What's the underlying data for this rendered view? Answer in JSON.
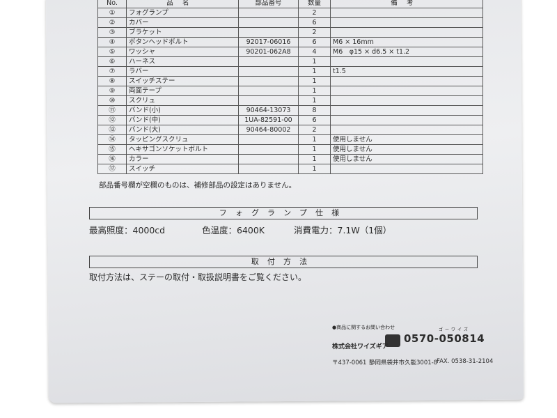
{
  "table": {
    "header": [
      "No.",
      "品名",
      "部品番号",
      "数量",
      "備考"
    ],
    "rows": [
      {
        "no": "①",
        "name": "フォグランプ",
        "qty": "2"
      },
      {
        "no": "②",
        "name": "カバー",
        "qty": "6"
      },
      {
        "no": "③",
        "name": "ブラケット",
        "qty": "2"
      },
      {
        "no": "④",
        "name": "ボタンヘッドボルト",
        "part": "92017-06016",
        "qty": "6",
        "note": "M6 × 16mm"
      },
      {
        "no": "⑤",
        "name": "ワッシャ",
        "part": "90201-062A8",
        "qty": "4",
        "note": "M6　φ15 × d6.5 × t1.2"
      },
      {
        "no": "⑥",
        "name": "ハーネス",
        "qty": "1"
      },
      {
        "no": "⑦",
        "name": "ラバー",
        "qty": "1",
        "note": "t1.5"
      },
      {
        "no": "⑧",
        "name": "スイッチステー",
        "qty": "1"
      },
      {
        "no": "⑨",
        "name": "両面テープ",
        "qty": "1"
      },
      {
        "no": "⑩",
        "name": "スクリュ",
        "qty": "1"
      },
      {
        "no": "⑪",
        "name": "バンド(小)",
        "part": "90464-13073",
        "qty": "8"
      },
      {
        "no": "⑫",
        "name": "バンド(中)",
        "part": "1UA-82591-00",
        "qty": "6"
      },
      {
        "no": "⑬",
        "name": "バンド(大)",
        "part": "90464-80002",
        "qty": "2"
      },
      {
        "no": "⑭",
        "name": "タッピングスクリュ",
        "qty": "1",
        "note": "使用しません"
      },
      {
        "no": "⑮",
        "name": "ヘキサゴンソケットボルト",
        "qty": "1",
        "note": "使用しません"
      },
      {
        "no": "⑯",
        "name": "カラー",
        "qty": "1",
        "note": "使用しません"
      },
      {
        "no": "⑰",
        "name": "スイッチ",
        "qty": "1"
      }
    ]
  },
  "table_note": "部品番号欄が空欄のものは、補修部品の設定はありません。",
  "spec": {
    "heading": "フォグランプ仕様",
    "items": [
      "最高照度：4000cd",
      "色温度：6400K",
      "消費電力：7.1W（1個）"
    ]
  },
  "mounting": {
    "heading": "取付方法",
    "text": "取付方法は、ステーの取付・取扱説明書をご覧ください。"
  },
  "footer": {
    "inquiry": "●商品に関するお問い合わせ",
    "phone": "0570-050814",
    "phone_reading": "ゴーワイズ",
    "company": "株式会社ワイズギア",
    "postal": "〒437-0061",
    "address": "静岡県袋井市久能3001-8",
    "fax": "FAX. 0538-31-2104"
  }
}
